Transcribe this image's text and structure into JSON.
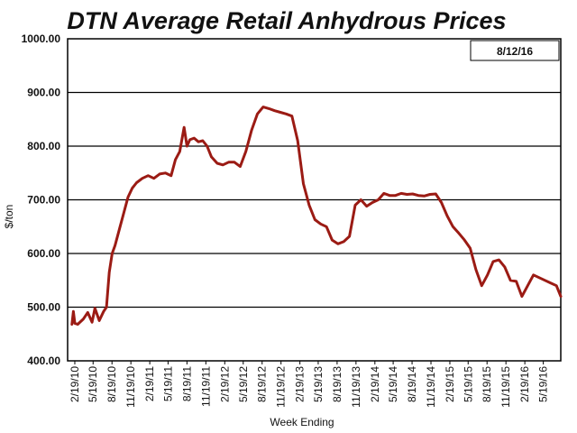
{
  "chart_data": {
    "type": "line",
    "title": "DTN Average Retail Anhydrous Prices",
    "xlabel": "Week Ending",
    "ylabel": "$/ton",
    "date_box": "8/12/16",
    "ylim": [
      400,
      1000
    ],
    "y_ticks": [
      "400.00",
      "500.00",
      "600.00",
      "700.00",
      "800.00",
      "900.00",
      "1000.00"
    ],
    "x_ticks": [
      "2/19/10",
      "5/19/10",
      "8/19/10",
      "11/19/10",
      "2/19/11",
      "5/19/11",
      "8/19/11",
      "11/19/11",
      "2/19/12",
      "5/19/12",
      "8/19/12",
      "11/19/12",
      "2/19/13",
      "5/19/13",
      "8/19/13",
      "11/19/13",
      "2/19/14",
      "5/19/14",
      "8/19/14",
      "11/19/14",
      "2/19/15",
      "5/19/15",
      "8/19/15",
      "11/19/15",
      "2/19/16",
      "5/19/16"
    ],
    "grid": "horizontal",
    "line_color": "#9B1B14",
    "series": [
      {
        "x": [
          "2010-02-05",
          "2010-02-12",
          "2010-02-19",
          "2010-03-05",
          "2010-04-02",
          "2010-04-23",
          "2010-05-14",
          "2010-05-28",
          "2010-06-18",
          "2010-07-09",
          "2010-07-23",
          "2010-08-06",
          "2010-08-20",
          "2010-09-03",
          "2010-09-24",
          "2010-10-15",
          "2010-11-05",
          "2010-11-26",
          "2010-12-17",
          "2011-01-14",
          "2011-02-11",
          "2011-03-11",
          "2011-04-08",
          "2011-05-06",
          "2011-06-03",
          "2011-06-24",
          "2011-07-15",
          "2011-08-05",
          "2011-08-19",
          "2011-09-02",
          "2011-09-23",
          "2011-10-14",
          "2011-11-04",
          "2011-11-25",
          "2011-12-16",
          "2012-01-13",
          "2012-02-10",
          "2012-03-09",
          "2012-04-06",
          "2012-05-04",
          "2012-06-01",
          "2012-06-29",
          "2012-07-27",
          "2012-08-24",
          "2012-09-21",
          "2012-10-19",
          "2012-11-16",
          "2012-12-14",
          "2013-01-11",
          "2013-02-08",
          "2013-03-08",
          "2013-04-05",
          "2013-05-03",
          "2013-05-31",
          "2013-06-28",
          "2013-07-26",
          "2013-08-23",
          "2013-09-20",
          "2013-10-18",
          "2013-11-15",
          "2013-12-13",
          "2014-01-10",
          "2014-02-07",
          "2014-03-07",
          "2014-04-04",
          "2014-05-02",
          "2014-05-30",
          "2014-06-27",
          "2014-07-25",
          "2014-08-22",
          "2014-09-19",
          "2014-10-17",
          "2014-11-14",
          "2014-12-12",
          "2015-01-09",
          "2015-02-06",
          "2015-03-06",
          "2015-04-03",
          "2015-05-01",
          "2015-05-29",
          "2015-06-26",
          "2015-07-24",
          "2015-08-21",
          "2015-09-18",
          "2015-10-16",
          "2015-11-13",
          "2015-12-11",
          "2016-01-08",
          "2016-02-05",
          "2016-03-04",
          "2016-04-01",
          "2016-04-29",
          "2016-05-27",
          "2016-06-24",
          "2016-07-22",
          "2016-08-12"
        ],
        "y": [
          468,
          492,
          470,
          468,
          478,
          490,
          472,
          498,
          475,
          492,
          500,
          565,
          600,
          615,
          645,
          675,
          705,
          722,
          732,
          740,
          745,
          740,
          748,
          750,
          745,
          775,
          790,
          835,
          800,
          812,
          815,
          808,
          810,
          800,
          780,
          768,
          765,
          770,
          770,
          762,
          790,
          830,
          860,
          873,
          870,
          866,
          863,
          860,
          856,
          810,
          730,
          690,
          663,
          655,
          650,
          625,
          618,
          622,
          632,
          690,
          700,
          688,
          695,
          700,
          712,
          708,
          708,
          712,
          710,
          711,
          708,
          707,
          710,
          711,
          695,
          670,
          650,
          638,
          625,
          610,
          570,
          540,
          560,
          585,
          588,
          575,
          550,
          548,
          520,
          540,
          560,
          555,
          550,
          545,
          540,
          520
        ]
      }
    ]
  }
}
